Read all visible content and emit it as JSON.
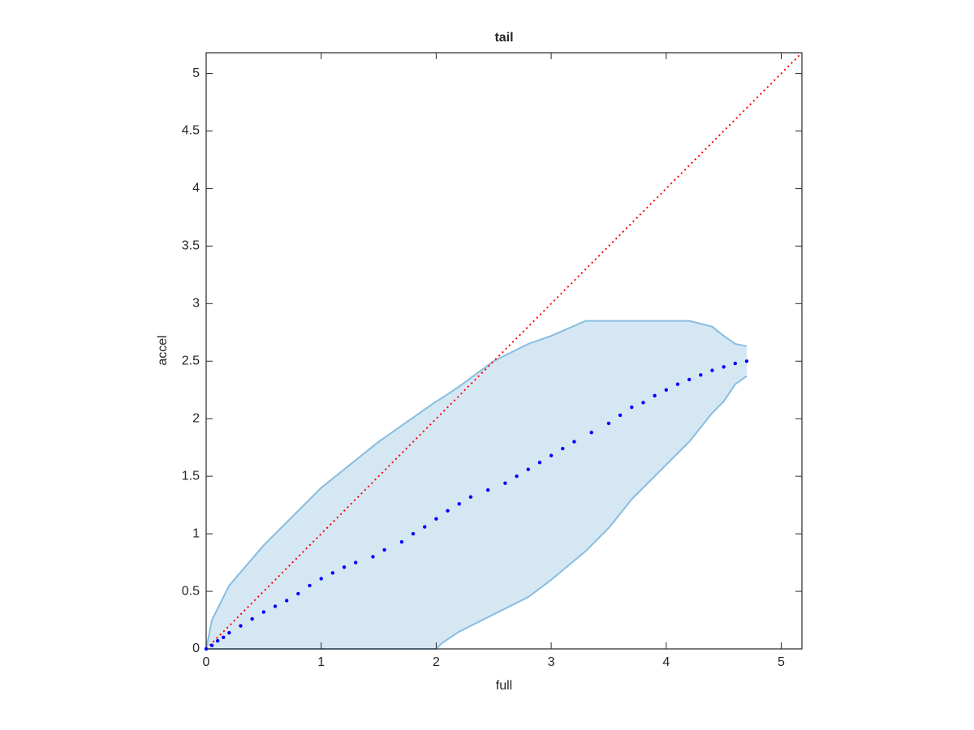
{
  "chart_data": {
    "type": "scatter",
    "title": "tail",
    "x_label": "full",
    "y_label": "accel",
    "x": [
      0,
      0.05,
      0.1,
      0.15,
      0.2,
      0.3,
      0.4,
      0.5,
      0.6,
      0.7,
      0.8,
      0.9,
      1.0,
      1.1,
      1.2,
      1.3,
      1.45,
      1.55,
      1.7,
      1.8,
      1.9,
      2.0,
      2.1,
      2.2,
      2.3,
      2.45,
      2.6,
      2.7,
      2.8,
      2.9,
      3.0,
      3.1,
      3.2,
      3.35,
      3.5,
      3.6,
      3.7,
      3.8,
      3.9,
      4.0,
      4.1,
      4.2,
      4.3,
      4.4,
      4.5,
      4.6,
      4.7
    ],
    "values": [
      0,
      0.03,
      0.07,
      0.1,
      0.14,
      0.2,
      0.26,
      0.32,
      0.37,
      0.42,
      0.48,
      0.55,
      0.61,
      0.66,
      0.71,
      0.75,
      0.8,
      0.86,
      0.93,
      1.0,
      1.06,
      1.13,
      1.2,
      1.26,
      1.32,
      1.38,
      1.44,
      1.5,
      1.56,
      1.62,
      1.68,
      1.74,
      1.8,
      1.88,
      1.96,
      2.03,
      2.1,
      2.14,
      2.2,
      2.25,
      2.3,
      2.34,
      2.38,
      2.42,
      2.45,
      2.48,
      2.5
    ],
    "color": "#0000ff",
    "band": {
      "x": [
        0,
        0.05,
        0.2,
        0.5,
        1,
        1.5,
        2,
        2.05,
        2.2,
        2.5,
        2.8,
        3,
        3.3,
        3.5,
        3.7,
        4,
        4.2,
        4.4,
        4.5,
        4.6,
        4.7
      ],
      "upper": [
        0,
        0.25,
        0.55,
        0.9,
        1.4,
        1.8,
        2.15,
        2.18,
        2.28,
        2.5,
        2.65,
        2.72,
        2.85,
        2.85,
        2.85,
        2.85,
        2.85,
        2.8,
        2.72,
        2.65,
        2.63
      ],
      "lower": [
        0,
        0,
        0,
        0,
        0,
        0,
        0,
        0.05,
        0.15,
        0.3,
        0.45,
        0.6,
        0.85,
        1.05,
        1.3,
        1.6,
        1.8,
        2.05,
        2.15,
        2.3,
        2.37
      ],
      "color": "#d6e7f4",
      "edge_color": "#86bde0"
    },
    "reference_line": {
      "x": [
        0,
        5.18
      ],
      "y": [
        0,
        5.18
      ],
      "color": "#ff0000"
    },
    "xlim": [
      0,
      5.18
    ],
    "ylim": [
      0,
      5.18
    ],
    "xticks": [
      0,
      1,
      2,
      3,
      4,
      5
    ],
    "yticks": [
      0,
      0.5,
      1,
      1.5,
      2,
      2.5,
      3,
      3.5,
      4,
      4.5,
      5
    ]
  }
}
